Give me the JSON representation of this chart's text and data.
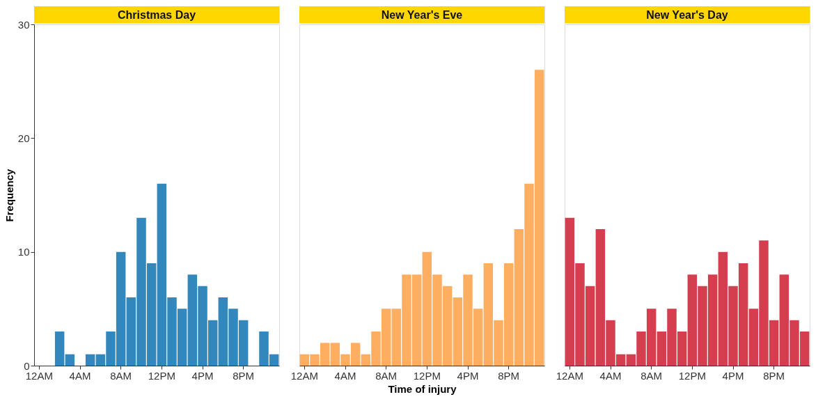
{
  "chart_data": [
    {
      "type": "bar",
      "title": "Christmas Day",
      "ylabel": "Frequency",
      "color": "#3288bd",
      "grid": false,
      "categories": [
        "12AM",
        null,
        null,
        null,
        "4AM",
        null,
        null,
        null,
        "8AM",
        null,
        null,
        null,
        "12PM",
        null,
        null,
        null,
        "4PM",
        null,
        null,
        null,
        "8PM",
        null,
        null,
        null
      ],
      "values": [
        0,
        0,
        3,
        1,
        0,
        1,
        1,
        3,
        10,
        6,
        13,
        9,
        16,
        6,
        5,
        8,
        7,
        4,
        6,
        5,
        4,
        0,
        3,
        1
      ],
      "ylim": [
        0,
        30
      ],
      "yticks": [
        0,
        10,
        20,
        30
      ]
    },
    {
      "type": "bar",
      "title": "New Year's Eve",
      "xlabel": "Time of injury",
      "color": "#fdae61",
      "grid": false,
      "tick_labels": "x",
      "categories": [
        "12AM",
        null,
        null,
        null,
        "4AM",
        null,
        null,
        null,
        "8AM",
        null,
        null,
        null,
        "12PM",
        null,
        null,
        null,
        "4PM",
        null,
        null,
        null,
        "8PM",
        null,
        null,
        null
      ],
      "values": [
        1,
        1,
        2,
        2,
        1,
        2,
        1,
        3,
        5,
        5,
        8,
        8,
        10,
        8,
        7,
        6,
        8,
        5,
        9,
        4,
        9,
        12,
        16,
        26
      ],
      "ylim": [
        0,
        30
      ],
      "yticks": [
        0,
        10,
        20,
        30
      ]
    },
    {
      "type": "bar",
      "title": "New Year's Day",
      "color": "#d53e4f",
      "grid": false,
      "tick_labels": "x",
      "categories": [
        "12AM",
        null,
        null,
        null,
        "4AM",
        null,
        null,
        null,
        "8AM",
        null,
        null,
        null,
        "12PM",
        null,
        null,
        null,
        "4PM",
        null,
        null,
        null,
        "8PM",
        null,
        null,
        null
      ],
      "values": [
        13,
        9,
        7,
        12,
        4,
        1,
        1,
        3,
        5,
        3,
        5,
        3,
        8,
        7,
        8,
        10,
        7,
        9,
        5,
        11,
        4,
        8,
        4,
        3
      ],
      "ylim": [
        0,
        30
      ],
      "yticks": [
        0,
        10,
        20,
        30
      ]
    }
  ]
}
